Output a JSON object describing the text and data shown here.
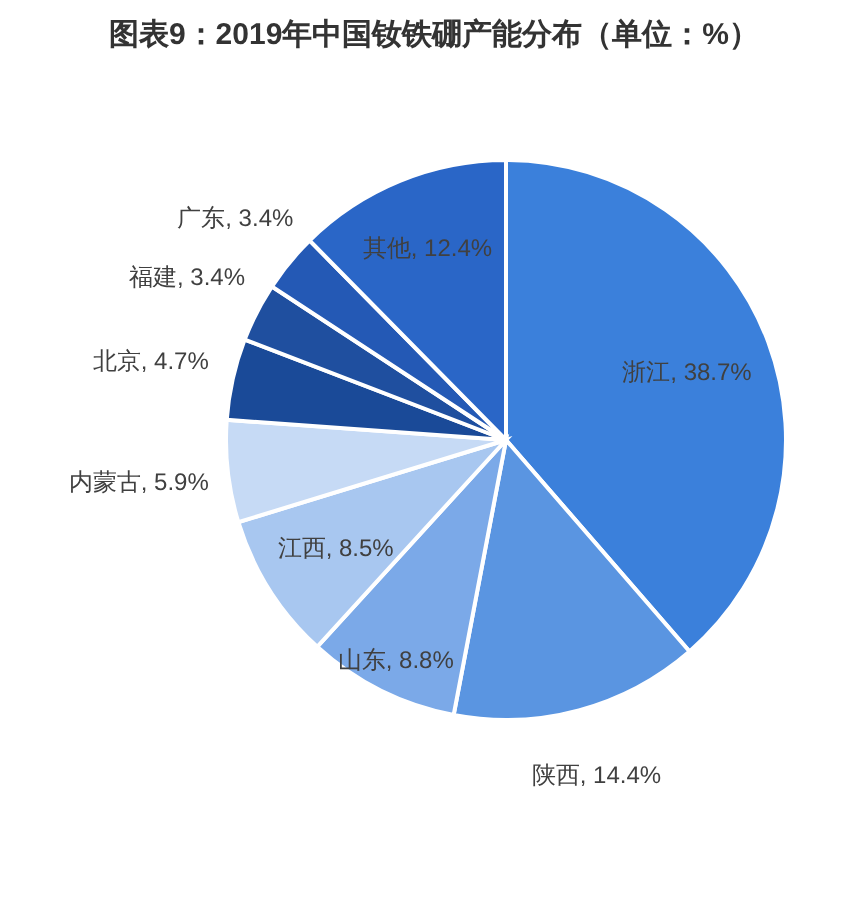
{
  "chart_data": {
    "type": "pie",
    "title": "图表9：2019年中国钕铁硼产能分布（单位：%）",
    "categories": [
      "浙江",
      "陕西",
      "山东",
      "江西",
      "内蒙古",
      "北京",
      "福建",
      "广东",
      "其他"
    ],
    "values": [
      38.7,
      14.4,
      8.8,
      8.5,
      5.9,
      4.7,
      3.4,
      3.4,
      12.4
    ],
    "colors": [
      "#3b80db",
      "#5a95e1",
      "#7ba9e8",
      "#a8c7f0",
      "#c6daf5",
      "#1a4a98",
      "#1f4f9f",
      "#2459b5",
      "#2a66c7"
    ],
    "value_labels": [
      "38.7%",
      "14.4%",
      "8.8%",
      "8.5%",
      "5.9%",
      "4.7%",
      "3.4%",
      "3.4%",
      "12.4%"
    ]
  }
}
